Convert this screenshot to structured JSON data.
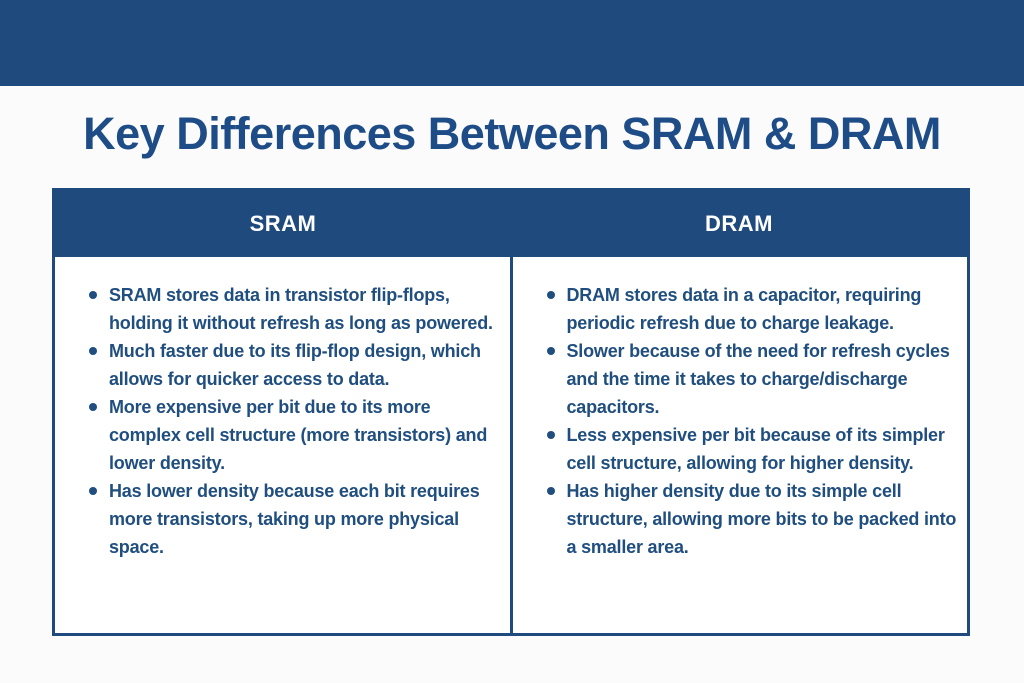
{
  "page": {
    "background_color": "#fbfbfb",
    "accent_color": "#1e4a7d",
    "text_color": "#1f4e7f"
  },
  "title": "Key Differences Between SRAM & DRAM",
  "table": {
    "columns": [
      {
        "header": "SRAM",
        "bullets": [
          "SRAM stores data in transistor flip-flops, holding it without refresh as long as powered.",
          "Much faster due to its flip-flop design, which allows for quicker access to data.",
          "More expensive per bit due to its more complex cell structure (more transistors) and lower density.",
          "Has lower density because each bit requires more transistors, taking up more physical space."
        ]
      },
      {
        "header": "DRAM",
        "bullets": [
          "DRAM stores data in a capacitor, requiring periodic refresh due to charge leakage.",
          "Slower because of the need for refresh cycles and the time it takes to charge/discharge capacitors.",
          "Less expensive per bit because of its simpler cell structure, allowing for higher density.",
          "Has higher density due to its simple cell structure, allowing more bits to be packed into a smaller area."
        ]
      }
    ]
  }
}
